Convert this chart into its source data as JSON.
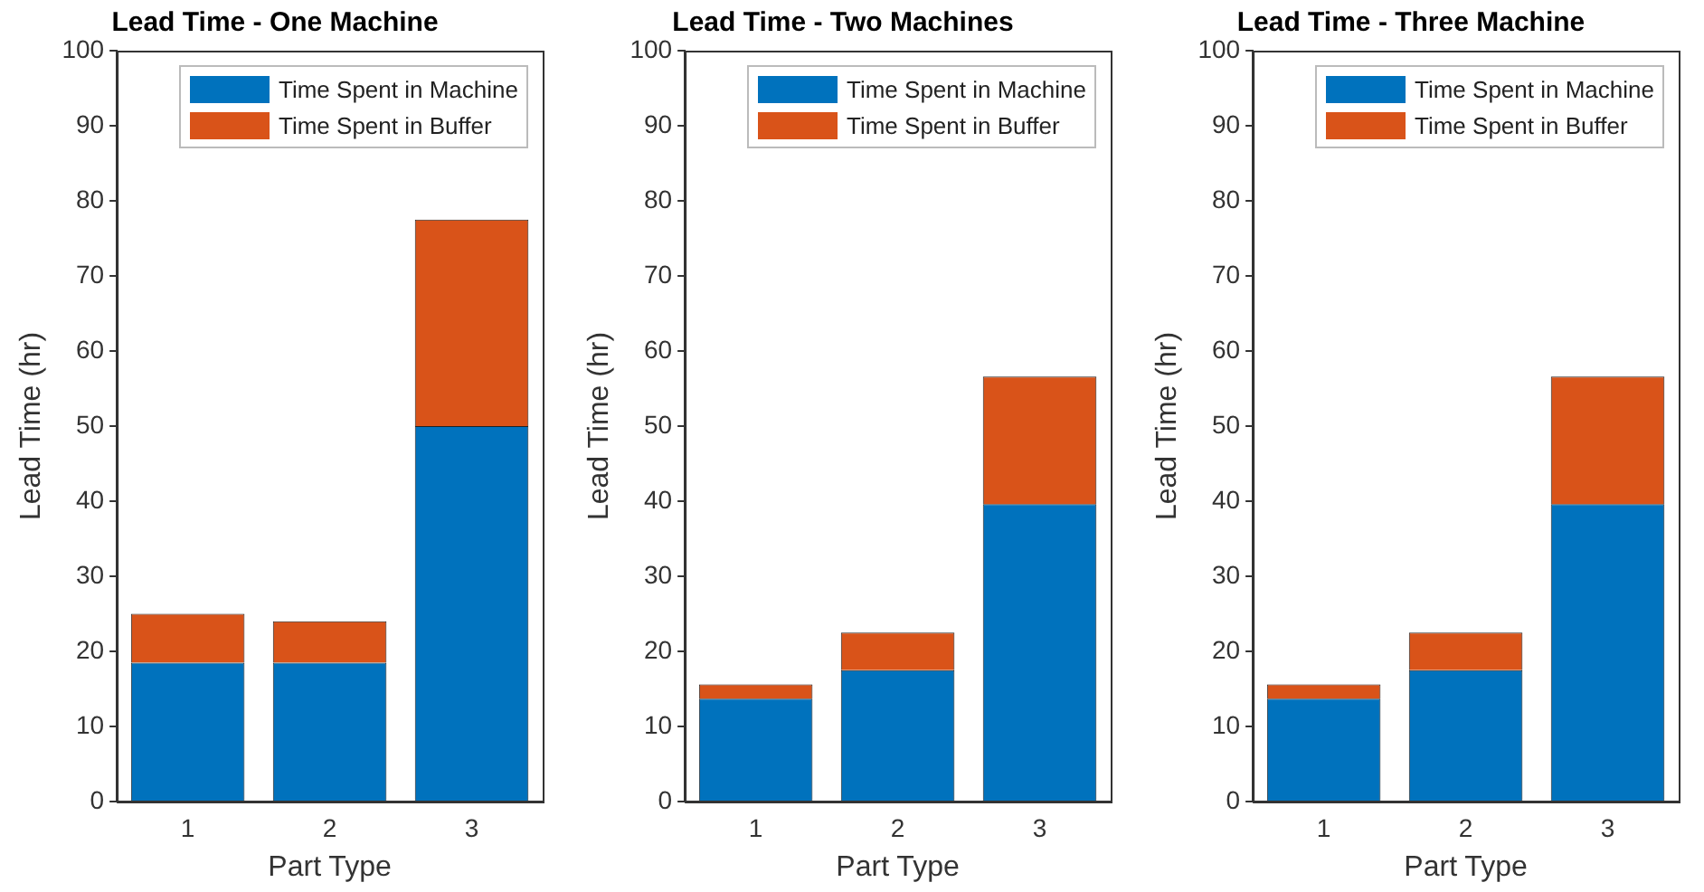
{
  "chart_data": [
    {
      "type": "bar",
      "title": "Lead Time - One Machine",
      "xlabel": "Part Type",
      "ylabel": "Lead Time (hr)",
      "categories": [
        "1",
        "2",
        "3"
      ],
      "stacked": true,
      "ylim": [
        0,
        100
      ],
      "yticks": [
        0,
        10,
        20,
        30,
        40,
        50,
        60,
        70,
        80,
        90,
        100
      ],
      "grid": false,
      "legend": "top right",
      "series": [
        {
          "name": "Time Spent in Machine",
          "color": "#0072bd",
          "values": [
            18.5,
            18.5,
            50
          ]
        },
        {
          "name": "Time Spent in Buffer",
          "color": "#d95319",
          "values": [
            6.5,
            5.5,
            27.5
          ]
        }
      ]
    },
    {
      "type": "bar",
      "title": "Lead Time - Two Machines",
      "xlabel": "Part Type",
      "ylabel": "Lead Time (hr)",
      "categories": [
        "1",
        "2",
        "3"
      ],
      "stacked": true,
      "ylim": [
        0,
        100
      ],
      "yticks": [
        0,
        10,
        20,
        30,
        40,
        50,
        60,
        70,
        80,
        90,
        100
      ],
      "grid": false,
      "legend": "top right",
      "series": [
        {
          "name": "Time Spent in Machine",
          "color": "#0072bd",
          "values": [
            13.7,
            17.5,
            39.6
          ]
        },
        {
          "name": "Time Spent in Buffer",
          "color": "#d95319",
          "values": [
            1.9,
            5,
            17
          ]
        }
      ]
    },
    {
      "type": "bar",
      "title": "Lead Time - Three Machine",
      "xlabel": "Part Type",
      "ylabel": "Lead Time (hr)",
      "categories": [
        "1",
        "2",
        "3"
      ],
      "stacked": true,
      "ylim": [
        0,
        100
      ],
      "yticks": [
        0,
        10,
        20,
        30,
        40,
        50,
        60,
        70,
        80,
        90,
        100
      ],
      "grid": false,
      "legend": "top right",
      "series": [
        {
          "name": "Time Spent in Machine",
          "color": "#0072bd",
          "values": [
            13.7,
            17.5,
            39.6
          ]
        },
        {
          "name": "Time Spent in Buffer",
          "color": "#d95319",
          "values": [
            1.9,
            5,
            17
          ]
        }
      ]
    }
  ]
}
